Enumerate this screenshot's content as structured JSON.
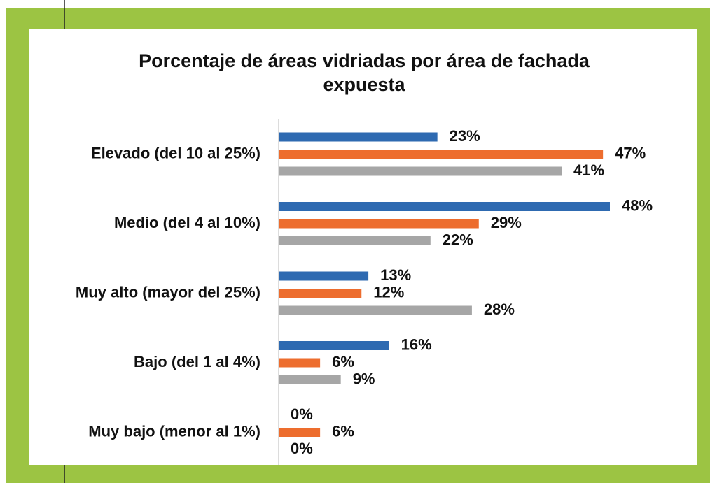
{
  "chart_data": {
    "type": "bar",
    "orientation": "horizontal",
    "title": "Porcentaje de áreas vidriadas por área de fachada expuesta",
    "categories": [
      "Elevado (del 10 al 25%)",
      "Medio (del 4 al 10%)",
      "Muy alto (mayor del 25%)",
      "Bajo (del 1 al 4%)",
      "Muy bajo (menor al 1%)"
    ],
    "series": [
      {
        "color": "#2e6ab1",
        "values": [
          23,
          48,
          13,
          16,
          0
        ],
        "value_labels": [
          "23%",
          "48%",
          "13%",
          "16%",
          "0%"
        ]
      },
      {
        "color": "#ed6d2e",
        "values": [
          47,
          29,
          12,
          6,
          6
        ],
        "value_labels": [
          "47%",
          "29%",
          "12%",
          "6%",
          "6%"
        ]
      },
      {
        "color": "#a6a6a6",
        "values": [
          41,
          22,
          28,
          9,
          0
        ],
        "value_labels": [
          "41%",
          "22%",
          "28%",
          "9%",
          "0%"
        ]
      }
    ]
  }
}
